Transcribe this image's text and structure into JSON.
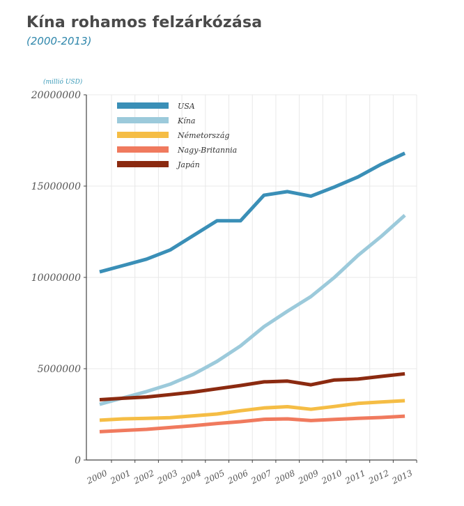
{
  "header": {
    "title": "Kína rohamos felzárkózása",
    "subtitle": "(2000-2013)"
  },
  "chart_data": {
    "type": "line",
    "title": "Kína rohamos felzárkózása",
    "subtitle": "(2000-2013)",
    "unit_label": "(millió USD)",
    "xlabel": "",
    "ylabel": "",
    "x": [
      "2000",
      "2001",
      "2002",
      "2003",
      "2004",
      "2005",
      "2006",
      "2007",
      "2008",
      "2009",
      "2010",
      "2011",
      "2012",
      "2013"
    ],
    "ylim": [
      0,
      20000000
    ],
    "yticks": [
      0,
      5000000,
      10000000,
      15000000,
      20000000
    ],
    "ytick_labels": [
      "0",
      "5000000",
      "10000000",
      "15000000",
      "20000000"
    ],
    "grid": true,
    "legend_position": "top-left",
    "series": [
      {
        "name": "USA",
        "color": "#3a8fb7",
        "values": [
          10300000,
          10650000,
          11000000,
          11500000,
          12300000,
          13100000,
          13100000,
          14500000,
          14700000,
          14450000,
          14950000,
          15500000,
          16200000,
          16800000
        ]
      },
      {
        "name": "Kína",
        "color": "#9ccadb",
        "values": [
          3050000,
          3400000,
          3750000,
          4150000,
          4700000,
          5400000,
          6250000,
          7300000,
          8150000,
          8950000,
          10000000,
          11200000,
          12250000,
          13400000
        ]
      },
      {
        "name": "Németország",
        "color": "#f5bd45",
        "values": [
          2180000,
          2250000,
          2280000,
          2320000,
          2420000,
          2520000,
          2700000,
          2850000,
          2920000,
          2780000,
          2930000,
          3100000,
          3180000,
          3250000
        ]
      },
      {
        "name": "Nagy-Britannia",
        "color": "#f07a5e",
        "values": [
          1550000,
          1620000,
          1680000,
          1780000,
          1880000,
          2000000,
          2100000,
          2230000,
          2250000,
          2160000,
          2220000,
          2280000,
          2330000,
          2400000
        ]
      },
      {
        "name": "Japán",
        "color": "#8b2a10",
        "values": [
          3300000,
          3380000,
          3450000,
          3580000,
          3720000,
          3900000,
          4080000,
          4280000,
          4320000,
          4120000,
          4380000,
          4430000,
          4580000,
          4720000
        ]
      }
    ]
  }
}
